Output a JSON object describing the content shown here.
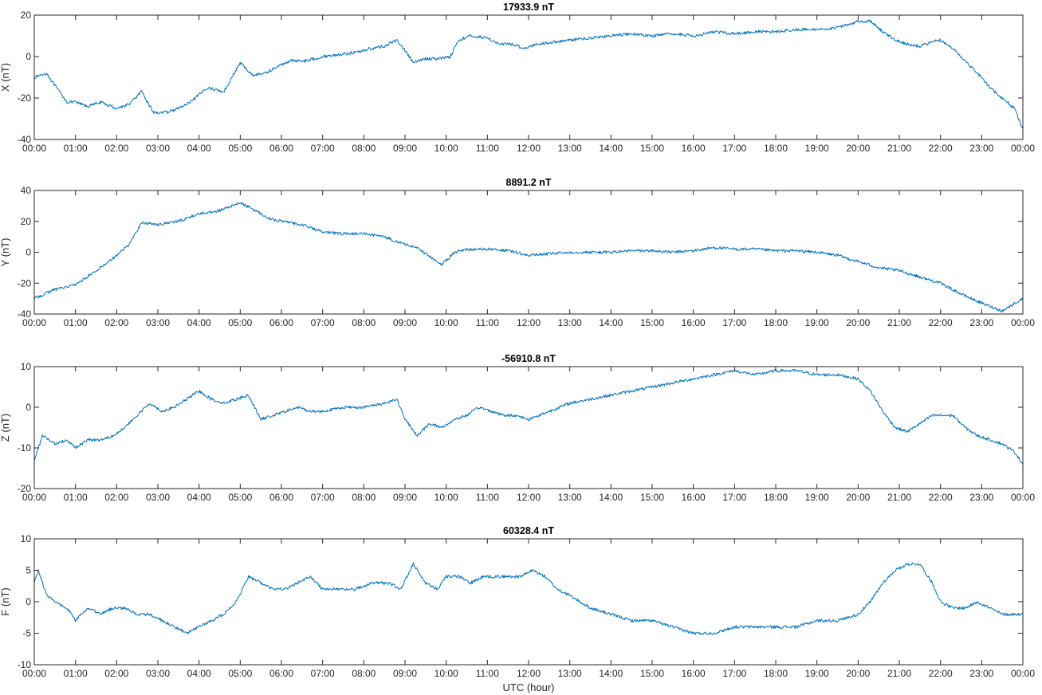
{
  "chart_data": [
    {
      "type": "line",
      "title": "17933.9 nT",
      "ylabel": "X (nT)",
      "xlabel": "",
      "xlim": [
        0,
        24
      ],
      "ylim": [
        -40,
        20
      ],
      "yticks": [
        -40,
        -20,
        0,
        20
      ],
      "xtick_labels": [
        "00:00",
        "01:00",
        "02:00",
        "03:00",
        "04:00",
        "05:00",
        "06:00",
        "07:00",
        "08:00",
        "09:00",
        "10:00",
        "11:00",
        "12:00",
        "13:00",
        "14:00",
        "15:00",
        "16:00",
        "17:00",
        "18:00",
        "19:00",
        "20:00",
        "21:00",
        "22:00",
        "23:00",
        "00:00"
      ],
      "grid": false,
      "color": "#0072BD",
      "x": [
        0,
        0.3,
        0.5,
        0.8,
        1.0,
        1.3,
        1.6,
        2.0,
        2.3,
        2.6,
        2.9,
        3.2,
        3.5,
        3.8,
        4.2,
        4.6,
        5.0,
        5.3,
        5.6,
        5.9,
        6.2,
        6.6,
        7.0,
        7.4,
        7.8,
        8.2,
        8.5,
        8.8,
        9.0,
        9.2,
        9.5,
        9.8,
        10.1,
        10.3,
        10.6,
        11.0,
        11.3,
        11.6,
        11.9,
        12.2,
        12.6,
        13.0,
        13.5,
        14.0,
        14.5,
        15.0,
        15.5,
        16.0,
        16.5,
        17.0,
        17.5,
        18.0,
        18.5,
        19.0,
        19.5,
        20.0,
        20.3,
        20.6,
        20.9,
        21.2,
        21.5,
        21.8,
        22.0,
        22.3,
        22.6,
        22.9,
        23.2,
        23.5,
        23.8,
        24.0
      ],
      "y": [
        -10,
        -8,
        -14,
        -22,
        -22,
        -24,
        -22,
        -25,
        -23,
        -17,
        -27,
        -27,
        -25,
        -22,
        -15,
        -17,
        -3,
        -9,
        -8,
        -5,
        -2,
        -2,
        0,
        1,
        2,
        4,
        5,
        8,
        3,
        -3,
        -1,
        -1,
        0,
        8,
        10,
        9,
        6,
        6,
        4,
        6,
        7,
        8,
        9,
        10,
        11,
        10,
        11,
        10,
        12,
        11,
        12,
        12,
        13,
        13,
        14,
        17,
        17,
        12,
        8,
        6,
        5,
        7,
        8,
        4,
        -2,
        -8,
        -15,
        -20,
        -25,
        -35
      ]
    },
    {
      "type": "line",
      "title": "8891.2 nT",
      "ylabel": "Y (nT)",
      "xlabel": "",
      "xlim": [
        0,
        24
      ],
      "ylim": [
        -40,
        40
      ],
      "yticks": [
        -40,
        -20,
        0,
        20,
        40
      ],
      "xtick_labels": [
        "00:00",
        "01:00",
        "02:00",
        "03:00",
        "04:00",
        "05:00",
        "06:00",
        "07:00",
        "08:00",
        "09:00",
        "10:00",
        "11:00",
        "12:00",
        "13:00",
        "14:00",
        "15:00",
        "16:00",
        "17:00",
        "18:00",
        "19:00",
        "20:00",
        "21:00",
        "22:00",
        "23:00",
        "00:00"
      ],
      "grid": false,
      "color": "#0072BD",
      "x": [
        0,
        0.5,
        1.0,
        1.5,
        2.0,
        2.3,
        2.6,
        3.0,
        3.5,
        4.0,
        4.5,
        5.0,
        5.3,
        5.7,
        6.0,
        6.5,
        7.0,
        7.5,
        8.0,
        8.5,
        9.0,
        9.3,
        9.6,
        9.9,
        10.2,
        10.5,
        11.0,
        11.5,
        12.0,
        12.5,
        13.0,
        13.5,
        14.0,
        14.5,
        15.0,
        15.5,
        16.0,
        16.5,
        17.0,
        17.5,
        18.0,
        18.5,
        19.0,
        19.5,
        20.0,
        20.5,
        21.0,
        21.5,
        22.0,
        22.5,
        23.0,
        23.5,
        24.0
      ],
      "y": [
        -30,
        -24,
        -21,
        -12,
        -2,
        5,
        19,
        18,
        20,
        25,
        27,
        32,
        28,
        22,
        20,
        18,
        13,
        12,
        12,
        10,
        5,
        3,
        -3,
        -8,
        0,
        2,
        2,
        1,
        -2,
        -1,
        0,
        0,
        0,
        1,
        1,
        0,
        1,
        3,
        2,
        2,
        1,
        1,
        0,
        -2,
        -6,
        -10,
        -12,
        -16,
        -20,
        -27,
        -33,
        -38,
        -30
      ]
    },
    {
      "type": "line",
      "title": "-56910.8 nT",
      "ylabel": "Z (nT)",
      "xlabel": "",
      "xlim": [
        0,
        24
      ],
      "ylim": [
        -20,
        10
      ],
      "yticks": [
        -20,
        -10,
        0,
        10
      ],
      "xtick_labels": [
        "00:00",
        "01:00",
        "02:00",
        "03:00",
        "04:00",
        "05:00",
        "06:00",
        "07:00",
        "08:00",
        "09:00",
        "10:00",
        "11:00",
        "12:00",
        "13:00",
        "14:00",
        "15:00",
        "16:00",
        "17:00",
        "18:00",
        "19:00",
        "20:00",
        "21:00",
        "22:00",
        "23:00",
        "00:00"
      ],
      "grid": false,
      "color": "#0072BD",
      "x": [
        0,
        0.2,
        0.5,
        0.8,
        1.0,
        1.3,
        1.6,
        1.9,
        2.2,
        2.5,
        2.8,
        3.1,
        3.4,
        3.7,
        4.0,
        4.3,
        4.6,
        4.9,
        5.2,
        5.5,
        5.8,
        6.1,
        6.4,
        6.7,
        7.0,
        7.5,
        8.0,
        8.5,
        8.8,
        9.0,
        9.3,
        9.6,
        9.9,
        10.2,
        10.5,
        10.8,
        11.1,
        11.4,
        11.7,
        12.0,
        12.5,
        13.0,
        13.5,
        14.0,
        14.5,
        15.0,
        15.5,
        16.0,
        16.5,
        17.0,
        17.5,
        18.0,
        18.5,
        19.0,
        19.5,
        20.0,
        20.3,
        20.6,
        20.9,
        21.2,
        21.5,
        21.8,
        22.0,
        22.3,
        22.6,
        22.9,
        23.2,
        23.5,
        23.8,
        24.0
      ],
      "y": [
        -13,
        -7,
        -9,
        -8,
        -10,
        -8,
        -8,
        -7,
        -5,
        -2,
        1,
        -1,
        0,
        2,
        4,
        2,
        1,
        2,
        3,
        -3,
        -2,
        -1,
        0,
        -1,
        -1,
        0,
        0,
        1,
        2,
        -3,
        -7,
        -4,
        -5,
        -3,
        -2,
        0,
        -1,
        -2,
        -2,
        -3,
        -1,
        1,
        2,
        3,
        4,
        5,
        6,
        7,
        8,
        9,
        8,
        9,
        9,
        8,
        8,
        7,
        4,
        -1,
        -5,
        -6,
        -4,
        -2,
        -2,
        -2,
        -5,
        -7,
        -8,
        -9,
        -11,
        -14
      ]
    },
    {
      "type": "line",
      "title": "60328.4 nT",
      "ylabel": "F (nT)",
      "xlabel": "UTC (hour)",
      "xlim": [
        0,
        24
      ],
      "ylim": [
        -10,
        10
      ],
      "yticks": [
        -10,
        -5,
        0,
        5,
        10
      ],
      "xtick_labels": [
        "00:00",
        "01:00",
        "02:00",
        "03:00",
        "04:00",
        "05:00",
        "06:00",
        "07:00",
        "08:00",
        "09:00",
        "10:00",
        "11:00",
        "12:00",
        "13:00",
        "14:00",
        "15:00",
        "16:00",
        "17:00",
        "18:00",
        "19:00",
        "20:00",
        "21:00",
        "22:00",
        "23:00",
        "00:00"
      ],
      "grid": false,
      "color": "#0072BD",
      "x": [
        0,
        0.1,
        0.3,
        0.5,
        0.8,
        1.0,
        1.3,
        1.6,
        1.9,
        2.2,
        2.5,
        2.8,
        3.1,
        3.4,
        3.7,
        4.0,
        4.3,
        4.6,
        4.9,
        5.2,
        5.5,
        5.8,
        6.1,
        6.4,
        6.7,
        7.0,
        7.4,
        7.8,
        8.2,
        8.6,
        8.9,
        9.2,
        9.5,
        9.8,
        10.0,
        10.3,
        10.6,
        10.9,
        11.2,
        11.5,
        11.8,
        12.1,
        12.4,
        12.7,
        13.0,
        13.5,
        14.0,
        14.5,
        15.0,
        15.5,
        16.0,
        16.5,
        17.0,
        17.5,
        18.0,
        18.5,
        19.0,
        19.5,
        20.0,
        20.3,
        20.6,
        20.9,
        21.2,
        21.5,
        21.8,
        22.0,
        22.3,
        22.6,
        22.9,
        23.2,
        23.5,
        23.8,
        24.0
      ],
      "y": [
        3,
        5,
        1,
        0,
        -1,
        -3,
        -1,
        -2,
        -1,
        -1,
        -2,
        -2,
        -3,
        -4,
        -5,
        -4,
        -3,
        -2,
        0,
        4,
        3,
        2,
        2,
        3,
        4,
        2,
        2,
        2,
        3,
        3,
        2,
        6,
        3,
        2,
        4,
        4,
        3,
        4,
        4,
        4,
        4,
        5,
        4,
        2,
        1,
        -1,
        -2,
        -3,
        -3,
        -4,
        -5,
        -5,
        -4,
        -4,
        -4,
        -4,
        -3,
        -3,
        -2,
        0,
        3,
        5,
        6,
        6,
        3,
        0,
        -1,
        -1,
        0,
        -1,
        -2,
        -2,
        -2
      ]
    }
  ]
}
